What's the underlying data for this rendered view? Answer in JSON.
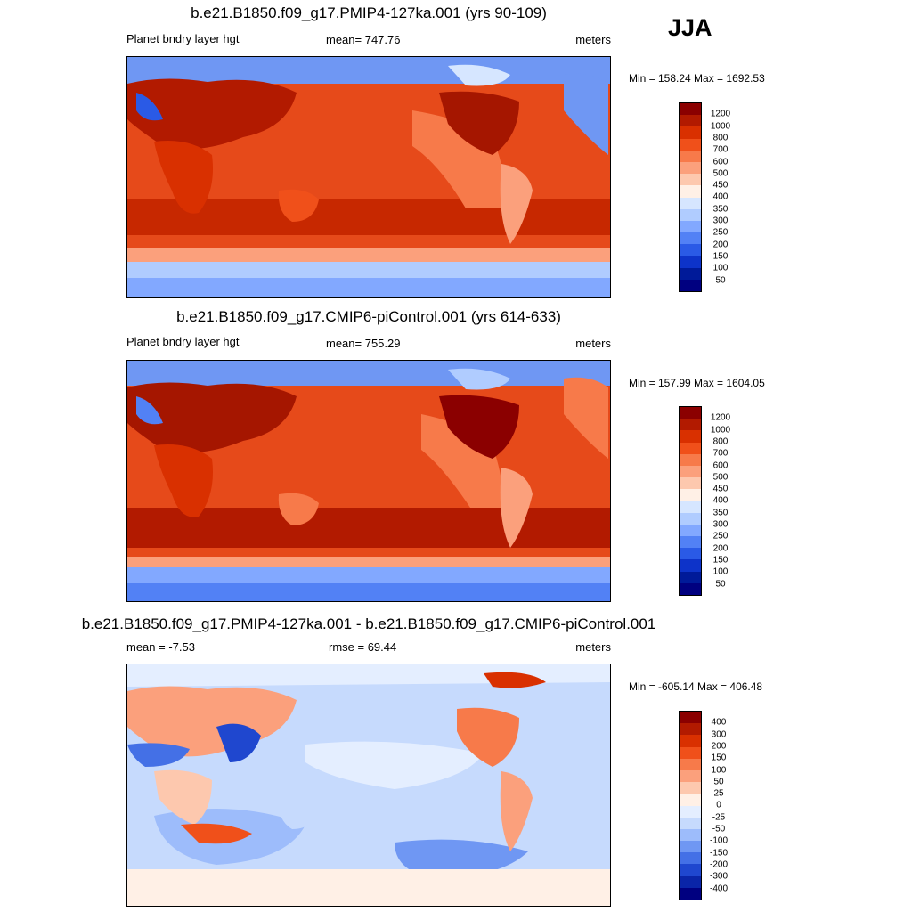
{
  "season": "JJA",
  "panels": [
    {
      "id": "ctl1",
      "title": "b.e21.B1850.f09_g17.PMIP4-127ka.001 (yrs 90-109)",
      "left_label": "Planet bndry layer hgt",
      "center_label": "mean= 747.76",
      "right_label": "meters",
      "minmax": "Min = 158.24 Max = 1692.53",
      "colorbar": {
        "labels": [
          "1200",
          "1000",
          "800",
          "700",
          "600",
          "500",
          "450",
          "400",
          "350",
          "300",
          "250",
          "200",
          "150",
          "100",
          "50"
        ],
        "colors": [
          "#8b0000",
          "#b21a00",
          "#d93000",
          "#f0501a",
          "#f77a4a",
          "#fba07c",
          "#fdc8ae",
          "#fff0e6",
          "#d6e6ff",
          "#b0ccff",
          "#82a8ff",
          "#5281f5",
          "#2a5ae6",
          "#0d33c9",
          "#001a99",
          "#000080"
        ]
      }
    },
    {
      "id": "ctl2",
      "title": "b.e21.B1850.f09_g17.CMIP6-piControl.001 (yrs 614-633)",
      "left_label": "Planet bndry layer hgt",
      "center_label": "mean= 755.29",
      "right_label": "meters",
      "minmax": "Min = 157.99 Max = 1604.05",
      "colorbar": {
        "labels": [
          "1200",
          "1000",
          "800",
          "700",
          "600",
          "500",
          "450",
          "400",
          "350",
          "300",
          "250",
          "200",
          "150",
          "100",
          "50"
        ],
        "colors": [
          "#8b0000",
          "#b21a00",
          "#d93000",
          "#f0501a",
          "#f77a4a",
          "#fba07c",
          "#fdc8ae",
          "#fff0e6",
          "#d6e6ff",
          "#b0ccff",
          "#82a8ff",
          "#5281f5",
          "#2a5ae6",
          "#0d33c9",
          "#001a99",
          "#000080"
        ]
      }
    },
    {
      "id": "diff",
      "title": "b.e21.B1850.f09_g17.PMIP4-127ka.001 - b.e21.B1850.f09_g17.CMIP6-piControl.001",
      "left_label": "mean =  -7.53",
      "center_label": "rmse =  69.44",
      "right_label": "meters",
      "minmax": "Min = -605.14 Max = 406.48",
      "colorbar": {
        "labels": [
          "400",
          "300",
          "200",
          "150",
          "100",
          "50",
          "25",
          "0",
          "-25",
          "-50",
          "-100",
          "-150",
          "-200",
          "-300",
          "-400"
        ],
        "colors": [
          "#8b0000",
          "#b21a00",
          "#d93000",
          "#f0501a",
          "#f77a4a",
          "#fba07c",
          "#fdc8ae",
          "#fff0e6",
          "#e4eeff",
          "#c6dafd",
          "#9dbcfb",
          "#6f97f3",
          "#4470e6",
          "#1f47cf",
          "#0a25a8",
          "#000080"
        ]
      }
    }
  ]
}
